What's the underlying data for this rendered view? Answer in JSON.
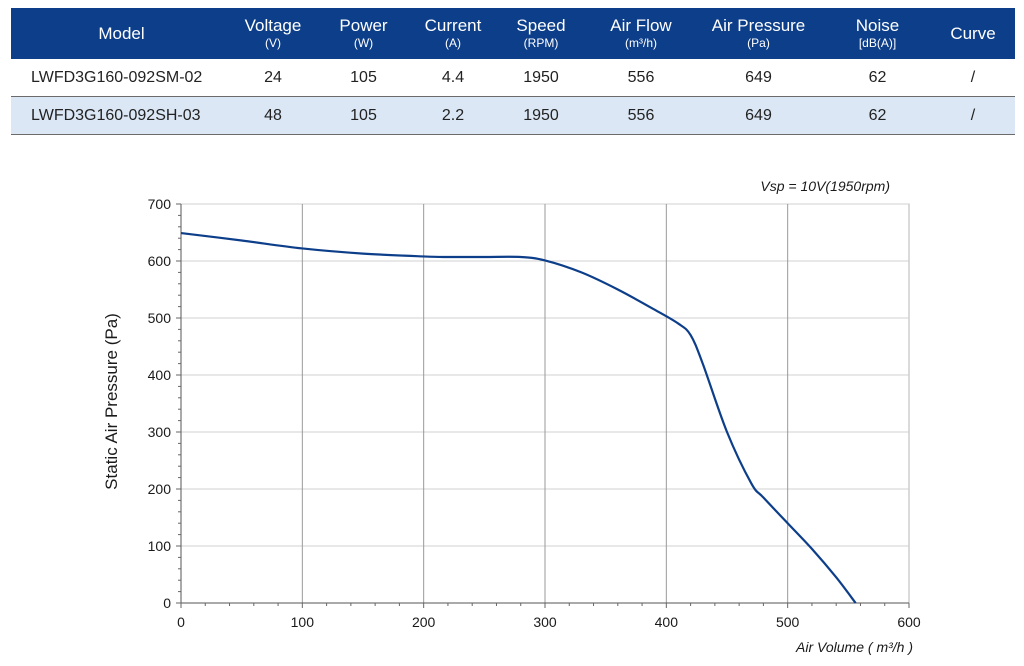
{
  "table": {
    "headers": [
      {
        "title": "Model",
        "unit": ""
      },
      {
        "title": "Voltage",
        "unit": "(V)"
      },
      {
        "title": "Power",
        "unit": "(W)"
      },
      {
        "title": "Current",
        "unit": "(A)"
      },
      {
        "title": "Speed",
        "unit": "(RPM)"
      },
      {
        "title": "Air Flow",
        "unit": "(m³/h)"
      },
      {
        "title": "Air Pressure",
        "unit": "(Pa)"
      },
      {
        "title": "Noise",
        "unit": "[dB(A)]"
      },
      {
        "title": "Curve",
        "unit": ""
      }
    ],
    "rows": [
      [
        "LWFD3G160-092SM-02",
        "24",
        "105",
        "4.4",
        "1950",
        "556",
        "649",
        "62",
        "/"
      ],
      [
        "LWFD3G160-092SH-03",
        "48",
        "105",
        "2.2",
        "1950",
        "556",
        "649",
        "62",
        "/"
      ]
    ]
  },
  "colors": {
    "header_bg": "#0d3e8a",
    "row_alt_bg": "#dbe7f5",
    "curve": "#0d3e8a",
    "grid": "#9a9a9a"
  },
  "chart_data": {
    "type": "line",
    "annotation": "Vsp = 10V(1950rpm)",
    "xlabel": "Air Volume ( m³/h )",
    "ylabel": "Static Air Pressure  (Pa)",
    "xlim": [
      0,
      600
    ],
    "ylim": [
      0,
      700
    ],
    "xticks": [
      0,
      100,
      200,
      300,
      400,
      500,
      600
    ],
    "yticks": [
      0,
      100,
      200,
      300,
      400,
      500,
      600,
      700
    ],
    "x_minor_step": 20,
    "y_minor_step": 20,
    "grid": {
      "vertical": true,
      "horizontal": true
    },
    "series": [
      {
        "x": [
          0,
          50,
          100,
          150,
          200,
          220,
          250,
          280,
          300,
          330,
          360,
          390,
          410,
          420,
          430,
          450,
          470,
          480,
          500,
          520,
          540,
          556
        ],
        "y": [
          649,
          636,
          622,
          613,
          608,
          607,
          607,
          607,
          601,
          580,
          550,
          515,
          490,
          470,
          420,
          300,
          210,
          185,
          140,
          95,
          45,
          0
        ]
      }
    ]
  }
}
